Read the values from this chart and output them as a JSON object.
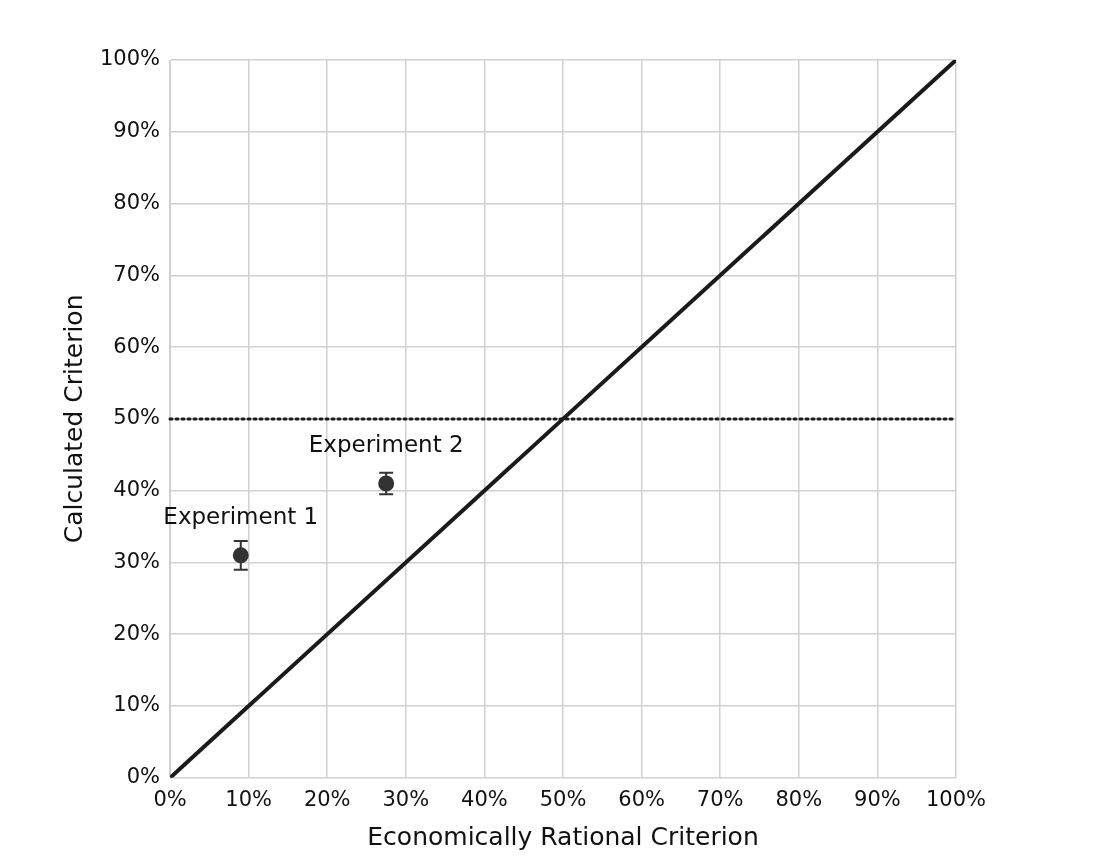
{
  "chart_data": {
    "type": "scatter",
    "xlabel": "Economically Rational Criterion",
    "ylabel": "Calculated Criterion",
    "xlim": [
      0,
      100
    ],
    "ylim": [
      0,
      100
    ],
    "xticks": [
      {
        "value": 0,
        "label": "0%"
      },
      {
        "value": 10,
        "label": "10%"
      },
      {
        "value": 20,
        "label": "20%"
      },
      {
        "value": 30,
        "label": "30%"
      },
      {
        "value": 40,
        "label": "40%"
      },
      {
        "value": 50,
        "label": "50%"
      },
      {
        "value": 60,
        "label": "60%"
      },
      {
        "value": 70,
        "label": "70%"
      },
      {
        "value": 80,
        "label": "80%"
      },
      {
        "value": 90,
        "label": "90%"
      },
      {
        "value": 100,
        "label": "100%"
      }
    ],
    "yticks": [
      {
        "value": 0,
        "label": "0%"
      },
      {
        "value": 10,
        "label": "10%"
      },
      {
        "value": 20,
        "label": "20%"
      },
      {
        "value": 30,
        "label": "30%"
      },
      {
        "value": 40,
        "label": "40%"
      },
      {
        "value": 50,
        "label": "50%"
      },
      {
        "value": 60,
        "label": "60%"
      },
      {
        "value": 70,
        "label": "70%"
      },
      {
        "value": 80,
        "label": "80%"
      },
      {
        "value": 90,
        "label": "90%"
      },
      {
        "value": 100,
        "label": "100%"
      }
    ],
    "grid": true,
    "legend": false,
    "marker": "circle",
    "series": [
      {
        "type": "scatter",
        "color": "#333333",
        "x": [
          9,
          27.5
        ],
        "values": [
          31,
          41
        ],
        "errors": [
          2,
          1.5
        ]
      },
      {
        "type": "line",
        "color": "#1a1a1a",
        "x": [
          0,
          100
        ],
        "values": [
          0,
          100
        ],
        "marker": "none",
        "line_style": "solid"
      }
    ],
    "ref_lines": [
      {
        "axis": "y",
        "value": 50,
        "color": "#1a1a1a",
        "line_style": "dotted"
      }
    ],
    "annotations": [
      {
        "text": "Experiment 1",
        "x": 9,
        "y": 31
      },
      {
        "text": "Experiment 2",
        "x": 27.5,
        "y": 41
      }
    ]
  }
}
